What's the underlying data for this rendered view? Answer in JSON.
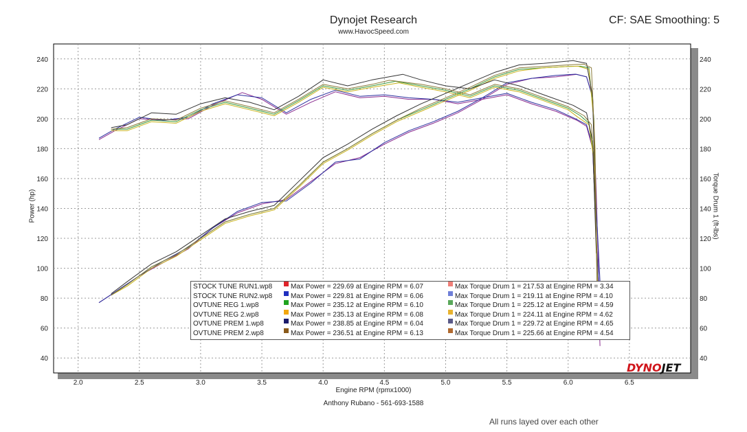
{
  "header": {
    "title": "Dynojet Research",
    "subtitle": "www.HavocSpeed.com",
    "cf_info": "CF: SAE Smoothing: 5"
  },
  "footer": {
    "operator": "Anthony Rubano - 561-693-1588",
    "note": "All runs layed over each other"
  },
  "logo": {
    "part1": "DYNO",
    "part2": "JET"
  },
  "chart_data": {
    "type": "line",
    "title": "Dynojet Research",
    "xlabel": "Engine RPM (rpmx1000)",
    "ylabel": "Power (hp)",
    "y2label": "Torque Drum 1 (ft-lbs)",
    "xlim": [
      1.8,
      7.0
    ],
    "ylim": [
      30,
      250
    ],
    "grid": true,
    "xticks": [
      2.0,
      2.5,
      3.0,
      3.5,
      4.0,
      4.5,
      5.0,
      5.5,
      6.0,
      6.5
    ],
    "xtick_labels": [
      "2.0",
      "2.5",
      "3.0",
      "3.5",
      "4.0",
      "4.5",
      "5.0",
      "5.5",
      "6.0",
      "6.5"
    ],
    "yticks": [
      40,
      60,
      80,
      100,
      120,
      140,
      160,
      180,
      200,
      220,
      240
    ],
    "ytick_labels": [
      "40",
      "60",
      "80",
      "100",
      "120",
      "140",
      "160",
      "180",
      "200",
      "220",
      "240"
    ],
    "legend_position": "bottom-center",
    "runs": [
      {
        "name": "STOCK TUNE RUN1.wp8",
        "power_color": "#e0242a",
        "torque_color": "#f07f78",
        "line_color": "#8a2b8f",
        "max_power": "Max Power = 229.69 at Engine RPM = 6.07",
        "max_torque": "Max Torque Drum 1 = 217.53 at Engine RPM = 3.34",
        "power_x": [
          2.17,
          2.3,
          2.5,
          2.7,
          2.9,
          3.1,
          3.3,
          3.5,
          3.7,
          3.9,
          4.1,
          4.3,
          4.5,
          4.7,
          4.9,
          5.1,
          5.3,
          5.5,
          5.7,
          5.9,
          6.07,
          6.15,
          6.2,
          6.23,
          6.26
        ],
        "power_y": [
          77,
          84,
          95,
          104,
          113,
          127,
          137,
          143,
          146,
          158,
          170,
          174,
          183,
          191,
          197,
          204,
          213,
          223,
          227,
          228,
          229.7,
          228,
          215,
          150,
          62
        ],
        "torque_x": [
          2.17,
          2.3,
          2.5,
          2.7,
          2.9,
          3.1,
          3.34,
          3.5,
          3.7,
          3.9,
          4.1,
          4.3,
          4.5,
          4.7,
          4.9,
          5.1,
          5.3,
          5.5,
          5.7,
          5.9,
          6.07,
          6.15,
          6.2,
          6.23,
          6.26
        ],
        "torque_y": [
          186,
          192,
          200,
          199,
          200,
          209,
          217.5,
          213,
          203,
          211,
          218,
          214,
          215,
          213,
          213,
          210,
          213,
          216,
          210,
          205,
          199,
          195,
          180,
          120,
          48
        ]
      },
      {
        "name": "STOCK TUNE RUN2.wp8",
        "power_color": "#1f2fbf",
        "torque_color": "#6f7fd8",
        "line_color": "#2b2f9f",
        "max_power": "Max Power = 229.81 at Engine RPM = 6.06",
        "max_torque": "Max Torque Drum 1 = 219.11 at Engine RPM = 4.10",
        "power_x": [
          2.17,
          2.3,
          2.5,
          2.7,
          2.9,
          3.1,
          3.3,
          3.5,
          3.7,
          3.9,
          4.1,
          4.3,
          4.5,
          4.7,
          4.9,
          5.1,
          5.3,
          5.5,
          5.7,
          5.9,
          6.06,
          6.15,
          6.2,
          6.23,
          6.28
        ],
        "power_y": [
          77,
          84,
          95,
          105,
          114,
          127,
          138,
          144,
          145,
          157,
          171,
          173,
          184,
          192,
          198,
          205,
          214,
          224,
          227,
          229,
          229.8,
          228,
          214,
          140,
          60
        ],
        "torque_x": [
          2.17,
          2.3,
          2.5,
          2.7,
          2.9,
          3.1,
          3.3,
          3.5,
          3.7,
          3.9,
          4.1,
          4.3,
          4.5,
          4.7,
          4.9,
          5.1,
          5.3,
          5.5,
          5.7,
          5.9,
          6.06,
          6.15,
          6.2,
          6.23,
          6.28
        ],
        "torque_y": [
          187,
          193,
          201,
          199,
          201,
          210,
          216,
          214,
          204,
          213,
          219.1,
          215,
          216,
          214,
          213,
          211,
          214,
          217,
          211,
          206,
          200,
          196,
          182,
          118,
          55
        ]
      },
      {
        "name": "OVTUNE REG 1.wp8",
        "power_color": "#1fa31f",
        "torque_color": "#5aa85a",
        "line_color": "#3a9a3a",
        "max_power": "Max Power = 235.12 at Engine RPM = 6.10",
        "max_torque": "Max Torque Drum 1 = 225.12 at Engine RPM = 4.59",
        "power_x": [
          2.27,
          2.4,
          2.6,
          2.8,
          3.0,
          3.2,
          3.4,
          3.6,
          3.8,
          4.0,
          4.2,
          4.4,
          4.6,
          4.8,
          5.0,
          5.2,
          5.4,
          5.6,
          5.8,
          6.0,
          6.1,
          6.17,
          6.21,
          6.24
        ],
        "power_y": [
          82,
          89,
          101,
          109,
          120,
          131,
          136,
          140,
          155,
          171,
          180,
          190,
          199,
          206,
          213,
          220,
          228,
          233,
          234,
          235,
          235.1,
          234,
          200,
          90
        ],
        "torque_x": [
          2.27,
          2.4,
          2.6,
          2.8,
          3.0,
          3.2,
          3.4,
          3.6,
          3.8,
          4.0,
          4.2,
          4.4,
          4.59,
          4.8,
          5.0,
          5.2,
          5.4,
          5.6,
          5.8,
          6.0,
          6.1,
          6.17,
          6.21,
          6.24
        ],
        "torque_y": [
          193,
          193,
          199,
          198,
          206,
          211,
          207,
          203,
          212,
          222,
          219,
          222,
          225,
          222,
          219,
          215,
          222,
          219,
          213,
          207,
          202,
          197,
          175,
          90
        ]
      },
      {
        "name": "OVTUNE REG 2.wp8",
        "power_color": "#f2a70f",
        "torque_color": "#e8b330",
        "line_color": "#c9b21a",
        "max_power": "Max Power = 235.13 at Engine RPM = 6.08",
        "max_torque": "Max Torque Drum 1 = 224.11 at Engine RPM = 4.62",
        "power_x": [
          2.27,
          2.4,
          2.6,
          2.8,
          3.0,
          3.2,
          3.4,
          3.6,
          3.8,
          4.0,
          4.2,
          4.4,
          4.6,
          4.8,
          5.0,
          5.2,
          5.4,
          5.6,
          5.8,
          6.0,
          6.08,
          6.17,
          6.21,
          6.24
        ],
        "power_y": [
          82,
          88,
          100,
          108,
          119,
          130,
          135,
          139,
          154,
          170,
          179,
          189,
          198,
          205,
          212,
          219,
          227,
          232,
          234,
          235,
          235.1,
          233,
          198,
          88
        ],
        "torque_x": [
          2.27,
          2.4,
          2.6,
          2.8,
          3.0,
          3.2,
          3.4,
          3.6,
          3.8,
          4.0,
          4.2,
          4.4,
          4.62,
          4.8,
          5.0,
          5.2,
          5.4,
          5.6,
          5.8,
          6.0,
          6.08,
          6.17,
          6.21,
          6.24
        ],
        "torque_y": [
          192,
          192,
          198,
          197,
          205,
          210,
          206,
          202,
          211,
          221,
          218,
          221,
          224,
          221,
          218,
          214,
          221,
          218,
          212,
          206,
          201,
          196,
          172,
          86
        ]
      },
      {
        "name": "OVTUNE PREM 1.wp8",
        "power_color": "#1b1b6b",
        "torque_color": "#5a5a88",
        "line_color": "#333333",
        "max_power": "Max Power = 238.85 at Engine RPM = 6.04",
        "max_torque": "Max Torque Drum 1 = 229.72 at Engine RPM = 4.65",
        "power_x": [
          2.27,
          2.4,
          2.6,
          2.8,
          3.0,
          3.2,
          3.4,
          3.6,
          3.8,
          4.0,
          4.2,
          4.4,
          4.6,
          4.8,
          5.0,
          5.2,
          5.4,
          5.6,
          5.8,
          6.04,
          6.15,
          6.2,
          6.23
        ],
        "power_y": [
          83,
          91,
          103,
          111,
          122,
          133,
          138,
          142,
          158,
          174,
          183,
          193,
          202,
          210,
          217,
          224,
          231,
          236,
          237,
          238.9,
          237,
          215,
          120
        ],
        "torque_x": [
          2.27,
          2.4,
          2.6,
          2.8,
          3.0,
          3.2,
          3.4,
          3.6,
          3.8,
          4.0,
          4.2,
          4.4,
          4.65,
          4.8,
          5.0,
          5.2,
          5.4,
          5.6,
          5.8,
          6.04,
          6.15,
          6.2,
          6.23
        ],
        "torque_y": [
          194,
          196,
          204,
          203,
          210,
          214,
          211,
          206,
          215,
          226,
          222,
          226,
          229.7,
          226,
          222,
          220,
          226,
          222,
          216,
          209,
          204,
          185,
          110
        ]
      },
      {
        "name": "OVTUNE PREM 2.wp8",
        "power_color": "#8a5a1a",
        "torque_color": "#b06a30",
        "line_color": "#8a7a3a",
        "max_power": "Max Power = 236.51 at Engine RPM = 6.13",
        "max_torque": "Max Torque Drum 1 = 225.66 at Engine RPM = 4.54",
        "power_x": [
          2.27,
          2.4,
          2.6,
          2.8,
          3.0,
          3.2,
          3.4,
          3.6,
          3.8,
          4.0,
          4.2,
          4.4,
          4.6,
          4.8,
          5.0,
          5.2,
          5.4,
          5.6,
          5.8,
          6.0,
          6.13,
          6.19,
          6.22,
          6.24
        ],
        "power_y": [
          82,
          89,
          101,
          109,
          120,
          131,
          136,
          140,
          155,
          171,
          180,
          190,
          199,
          207,
          214,
          221,
          229,
          234,
          235,
          236,
          236.5,
          234,
          180,
          75
        ],
        "torque_x": [
          2.27,
          2.4,
          2.6,
          2.8,
          3.0,
          3.2,
          3.4,
          3.6,
          3.8,
          4.0,
          4.2,
          4.4,
          4.54,
          4.8,
          5.0,
          5.2,
          5.4,
          5.6,
          5.8,
          6.0,
          6.13,
          6.19,
          6.22,
          6.24
        ],
        "torque_y": [
          193,
          194,
          200,
          199,
          207,
          212,
          208,
          204,
          213,
          223,
          220,
          223,
          225.7,
          223,
          220,
          216,
          223,
          220,
          214,
          208,
          202,
          196,
          160,
          70
        ]
      }
    ]
  }
}
